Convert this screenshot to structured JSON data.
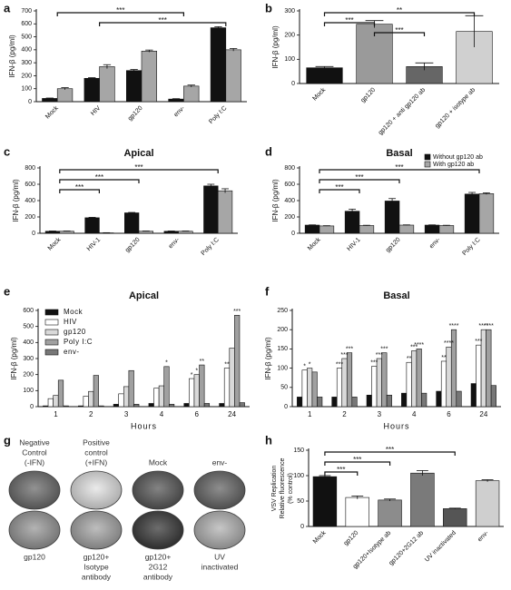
{
  "chart_data": [
    {
      "type": "bar",
      "label": "a",
      "ylabel": "IFN-β (pg/ml)",
      "categories": [
        "Mock",
        "HIV",
        "gp120",
        "env-",
        "Poly I:C"
      ],
      "series": [
        {
          "color": "#111111",
          "values": [
            25,
            180,
            240,
            20,
            570
          ],
          "errors": [
            3,
            5,
            8,
            3,
            8
          ]
        },
        {
          "color": "#a6a6a6",
          "values": [
            100,
            270,
            390,
            120,
            400
          ],
          "errors": [
            8,
            15,
            8,
            8,
            10
          ]
        }
      ],
      "ylim": [
        0,
        700
      ],
      "yticks": [
        0,
        100,
        200,
        300,
        400,
        500,
        600,
        700
      ],
      "brackets": [
        {
          "from": 0,
          "to": 3,
          "label": "***"
        },
        {
          "from": 1,
          "to": 4,
          "label": "***"
        }
      ]
    },
    {
      "type": "bar",
      "label": "b",
      "ylabel": "IFN-β (pg/ml)",
      "categories": [
        "Mock",
        "gp120",
        "gp120 + anti gp120 ab",
        "gp120 + isotype ab"
      ],
      "series": [
        {
          "colors": [
            "#111111",
            "#9a9a9a",
            "#666666",
            "#d0d0d0"
          ],
          "values": [
            65,
            245,
            70,
            215
          ],
          "errors": [
            5,
            15,
            15,
            65
          ]
        }
      ],
      "ylim": [
        0,
        300
      ],
      "yticks": [
        0,
        100,
        200,
        300
      ],
      "brackets": [
        {
          "from": 0,
          "to": 3,
          "label": "**"
        },
        {
          "from": 0,
          "to": 1,
          "label": "***"
        },
        {
          "from": 1,
          "to": 2,
          "label": "***"
        }
      ]
    },
    {
      "type": "bar",
      "label": "c",
      "title": "Apical",
      "ylabel": "IFN-β (pg/ml)",
      "categories": [
        "Mock",
        "HIV-1",
        "gp120",
        "env-",
        "Poly I:C"
      ],
      "series": [
        {
          "color": "#111111",
          "values": [
            25,
            190,
            250,
            25,
            580
          ],
          "errors": [
            3,
            5,
            5,
            3,
            20
          ]
        },
        {
          "color": "#a6a6a6",
          "values": [
            25,
            5,
            25,
            25,
            520
          ],
          "errors": [
            3,
            2,
            3,
            3,
            25
          ]
        }
      ],
      "ylim": [
        0,
        800
      ],
      "yticks": [
        0,
        200,
        400,
        600,
        800
      ],
      "brackets": [
        {
          "from": 0,
          "to": 4,
          "label": "***"
        },
        {
          "from": 0,
          "to": 2,
          "label": "***"
        },
        {
          "from": 0,
          "to": 1,
          "label": "***"
        }
      ]
    },
    {
      "type": "bar",
      "label": "d",
      "title": "Basal",
      "ylabel": "IFN-β (pg/ml)",
      "categories": [
        "Mock",
        "HIV-1",
        "gp120",
        "env-",
        "Poly I:C"
      ],
      "series": [
        {
          "name": "Without gp120 ab",
          "color": "#111111",
          "values": [
            100,
            270,
            395,
            100,
            480
          ],
          "errors": [
            3,
            25,
            30,
            3,
            20
          ]
        },
        {
          "name": "With gp120 ab",
          "color": "#a6a6a6",
          "values": [
            90,
            95,
            100,
            95,
            485
          ],
          "errors": [
            3,
            3,
            3,
            3,
            10
          ]
        }
      ],
      "ylim": [
        0,
        800
      ],
      "yticks": [
        0,
        200,
        400,
        600,
        800
      ],
      "legend": "upper right",
      "brackets": [
        {
          "from": 0,
          "to": 4,
          "label": "***"
        },
        {
          "from": 0,
          "to": 2,
          "label": "***"
        },
        {
          "from": 0,
          "to": 1,
          "label": "***"
        }
      ]
    },
    {
      "type": "bar",
      "label": "e",
      "title": "Apical",
      "ylabel": "IFN-β (pg/ml)",
      "xlabel": "Hours",
      "categories": [
        "1",
        "2",
        "3",
        "4",
        "6",
        "24"
      ],
      "series": [
        {
          "name": "Mock",
          "color": "#111111",
          "values": [
            5,
            5,
            15,
            20,
            20,
            20
          ]
        },
        {
          "name": "HIV",
          "color": "#ffffff",
          "values": [
            50,
            65,
            80,
            115,
            175,
            240
          ]
        },
        {
          "name": "gp120",
          "color": "#d9d9d9",
          "values": [
            70,
            95,
            125,
            130,
            200,
            365
          ]
        },
        {
          "name": "Poly I:C",
          "color": "#a0a0a0",
          "values": [
            165,
            195,
            225,
            250,
            260,
            570
          ]
        },
        {
          "name": "env-",
          "color": "#777777",
          "values": [
            5,
            5,
            15,
            15,
            20,
            25
          ]
        }
      ],
      "ylim": [
        0,
        600
      ],
      "yticks": [
        0,
        100,
        200,
        300,
        400,
        500,
        600
      ],
      "legend": "upper left",
      "annotations": [
        {
          "series": 3,
          "index": 3,
          "label": "*"
        },
        {
          "series": 1,
          "index": 4,
          "label": "*"
        },
        {
          "series": 2,
          "index": 4,
          "label": "*"
        },
        {
          "series": 3,
          "index": 4,
          "label": "**"
        },
        {
          "series": 1,
          "index": 5,
          "label": "**"
        },
        {
          "series": 3,
          "index": 5,
          "label": "***"
        }
      ]
    },
    {
      "type": "bar",
      "label": "f",
      "title": "Basal",
      "ylabel": "IFN-β (pg/ml)",
      "xlabel": "Hours",
      "categories": [
        "1",
        "2",
        "3",
        "4",
        "6",
        "24"
      ],
      "series": [
        {
          "color": "#111111",
          "values": [
            25,
            25,
            30,
            35,
            40,
            60
          ]
        },
        {
          "color": "#ffffff",
          "values": [
            95,
            100,
            105,
            115,
            118,
            160
          ]
        },
        {
          "color": "#d9d9d9",
          "values": [
            100,
            125,
            125,
            145,
            155,
            200
          ]
        },
        {
          "color": "#a0a0a0",
          "values": [
            90,
            140,
            140,
            150,
            200,
            200
          ]
        },
        {
          "color": "#777777",
          "values": [
            25,
            25,
            30,
            35,
            40,
            55
          ]
        }
      ],
      "ylim": [
        0,
        250
      ],
      "yticks": [
        0,
        50,
        100,
        150,
        200,
        250
      ],
      "annotations": [
        {
          "series": 1,
          "index": 0,
          "label": "*"
        },
        {
          "series": 2,
          "index": 0,
          "label": "*"
        },
        {
          "series": 1,
          "index": 1,
          "label": "***"
        },
        {
          "series": 2,
          "index": 1,
          "label": "***"
        },
        {
          "series": 3,
          "index": 1,
          "label": "***"
        },
        {
          "series": 1,
          "index": 2,
          "label": "***"
        },
        {
          "series": 2,
          "index": 2,
          "label": "***"
        },
        {
          "series": 3,
          "index": 2,
          "label": "***"
        },
        {
          "series": 1,
          "index": 3,
          "label": "**"
        },
        {
          "series": 2,
          "index": 3,
          "label": "***"
        },
        {
          "series": 3,
          "index": 3,
          "label": "****"
        },
        {
          "series": 1,
          "index": 4,
          "label": "**"
        },
        {
          "series": 2,
          "index": 4,
          "label": "****"
        },
        {
          "series": 3,
          "index": 4,
          "label": "****"
        },
        {
          "series": 1,
          "index": 5,
          "label": "***"
        },
        {
          "series": 2,
          "index": 5,
          "label": "****"
        },
        {
          "series": 3,
          "index": 5,
          "label": "****"
        }
      ]
    },
    {
      "type": "image-grid",
      "label": "g",
      "items": [
        {
          "lines": [
            "Negative",
            "Control",
            "(-IFN)"
          ],
          "fill": "#6e6e6e"
        },
        {
          "lines": [
            "Positive",
            "control",
            "(+IFN)"
          ],
          "fill": "#e4e4e4"
        },
        {
          "lines": [
            "Mock"
          ],
          "fill": "#5a5a5a"
        },
        {
          "lines": [
            "env-"
          ],
          "fill": "#686868"
        },
        {
          "lines": [
            "gp120"
          ],
          "fill": "#9a9a9a"
        },
        {
          "lines": [
            "gp120+",
            "Isotype",
            "antibody"
          ],
          "fill": "#a8a8a8"
        },
        {
          "lines": [
            "gp120+",
            "2G12",
            "antibody"
          ],
          "fill": "#3c3c3c"
        },
        {
          "lines": [
            "UV",
            "inactivated"
          ],
          "fill": "#b4b4b4"
        }
      ]
    },
    {
      "type": "bar",
      "label": "h",
      "ylabel": [
        "VSV Replication",
        "Relative fluorescence",
        "(% control)"
      ],
      "categories": [
        "Mock",
        "gp120",
        "gp120+Isotype ab",
        "gp120+2G12 ab",
        "UV inactivated",
        "env-"
      ],
      "series": [
        {
          "colors": [
            "#111111",
            "#ffffff",
            "#8c8c8c",
            "#7a7a7a",
            "#555555",
            "#cfcfcf"
          ],
          "values": [
            98,
            57,
            52,
            105,
            35,
            90
          ],
          "errors": [
            2,
            3,
            2,
            5,
            1,
            2
          ]
        }
      ],
      "ylim": [
        0,
        150
      ],
      "yticks": [
        0,
        50,
        100,
        150
      ],
      "brackets": [
        {
          "from": 0,
          "to": 4,
          "label": "***"
        },
        {
          "from": 0,
          "to": 2,
          "label": "***"
        },
        {
          "from": 0,
          "to": 1,
          "label": "***"
        }
      ]
    }
  ]
}
